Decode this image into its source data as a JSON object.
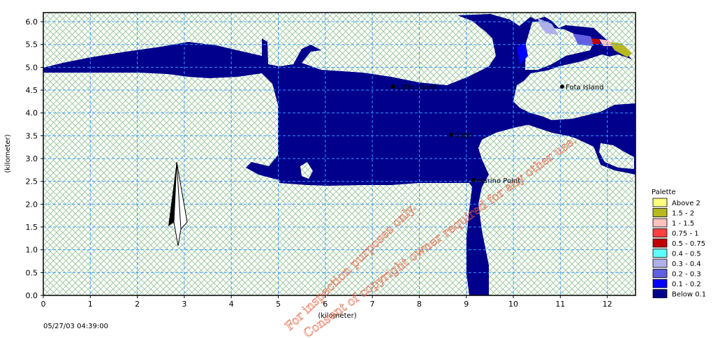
{
  "x_axis": {
    "label": "(kilometer)",
    "ticks": [
      "0",
      "1",
      "2",
      "3",
      "4",
      "5",
      "6",
      "7",
      "8",
      "9",
      "10",
      "11",
      "12"
    ]
  },
  "y_axis": {
    "label": "(kilometer)",
    "ticks": [
      "0.0",
      "0.5",
      "1.0",
      "1.5",
      "2.0",
      "2.5",
      "3.0",
      "3.5",
      "4.0",
      "4.5",
      "5.0",
      "5.5",
      "6.0"
    ]
  },
  "places": [
    {
      "name": "Little Island"
    },
    {
      "name": "Fota Island"
    },
    {
      "name": "Cobh"
    },
    {
      "name": "Marino Point"
    }
  ],
  "legend": {
    "title": "Palette",
    "entries": [
      {
        "label": "Above   2",
        "color": "#ffff80"
      },
      {
        "label": "1.5 -   2",
        "color": "#b8b820"
      },
      {
        "label": "1 -  1.5",
        "color": "#ffc0c0"
      },
      {
        "label": "0.75 -   1",
        "color": "#ff4040"
      },
      {
        "label": "0.5 - 0.75",
        "color": "#c00000"
      },
      {
        "label": "0.4 -  0.5",
        "color": "#60ffff"
      },
      {
        "label": "0.3 -  0.4",
        "color": "#b0b0e8"
      },
      {
        "label": "0.2 -  0.3",
        "color": "#6060e0"
      },
      {
        "label": "0.1 -  0.2",
        "color": "#0000ff"
      },
      {
        "label": "Below  0.1",
        "color": "#00008c"
      }
    ]
  },
  "timestamp": "05/27/03 04:39:00",
  "watermark": {
    "line1": "For inspection purposes only.",
    "line2": "Consent of copyright owner required for any other use."
  },
  "colors": {
    "water_main": "#00008c",
    "land_hatch": "#90c090",
    "grid": "#3399ff"
  }
}
